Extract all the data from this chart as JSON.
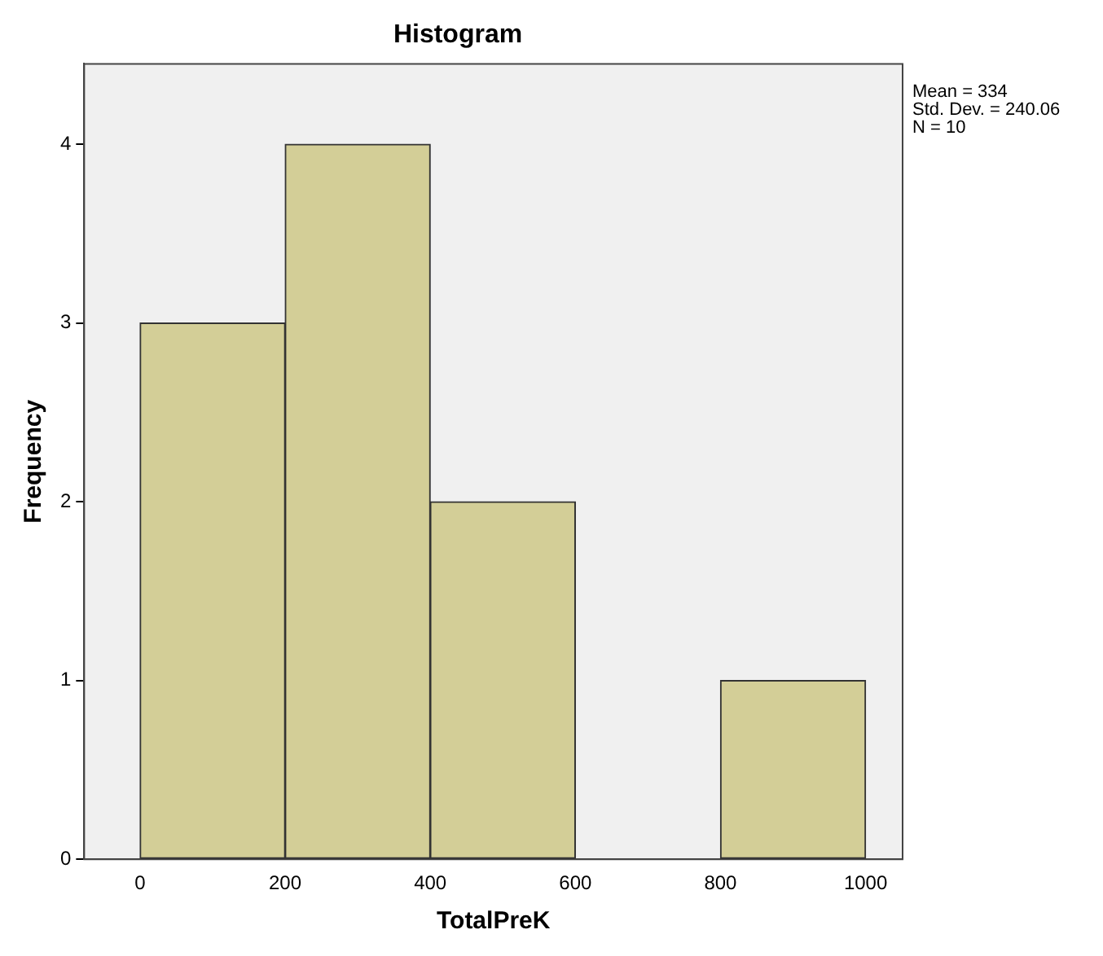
{
  "chart_data": {
    "type": "histogram",
    "title": "Histogram",
    "xlabel": "TotalPreK",
    "ylabel": "Frequency",
    "bins": [
      0,
      200,
      400,
      600,
      800,
      1000
    ],
    "values": [
      3,
      4,
      2,
      0,
      1
    ],
    "color": "#d3ce97",
    "xlim": [
      -77,
      1051
    ],
    "ylim": [
      0,
      4.45
    ],
    "xticks": [
      0,
      200,
      400,
      600,
      800,
      1000
    ],
    "yticks": [
      0,
      1,
      2,
      3,
      4
    ],
    "grid": false,
    "annotations": [
      "Mean = 334",
      "Std. Dev. = 240.06",
      "N = 10"
    ]
  }
}
